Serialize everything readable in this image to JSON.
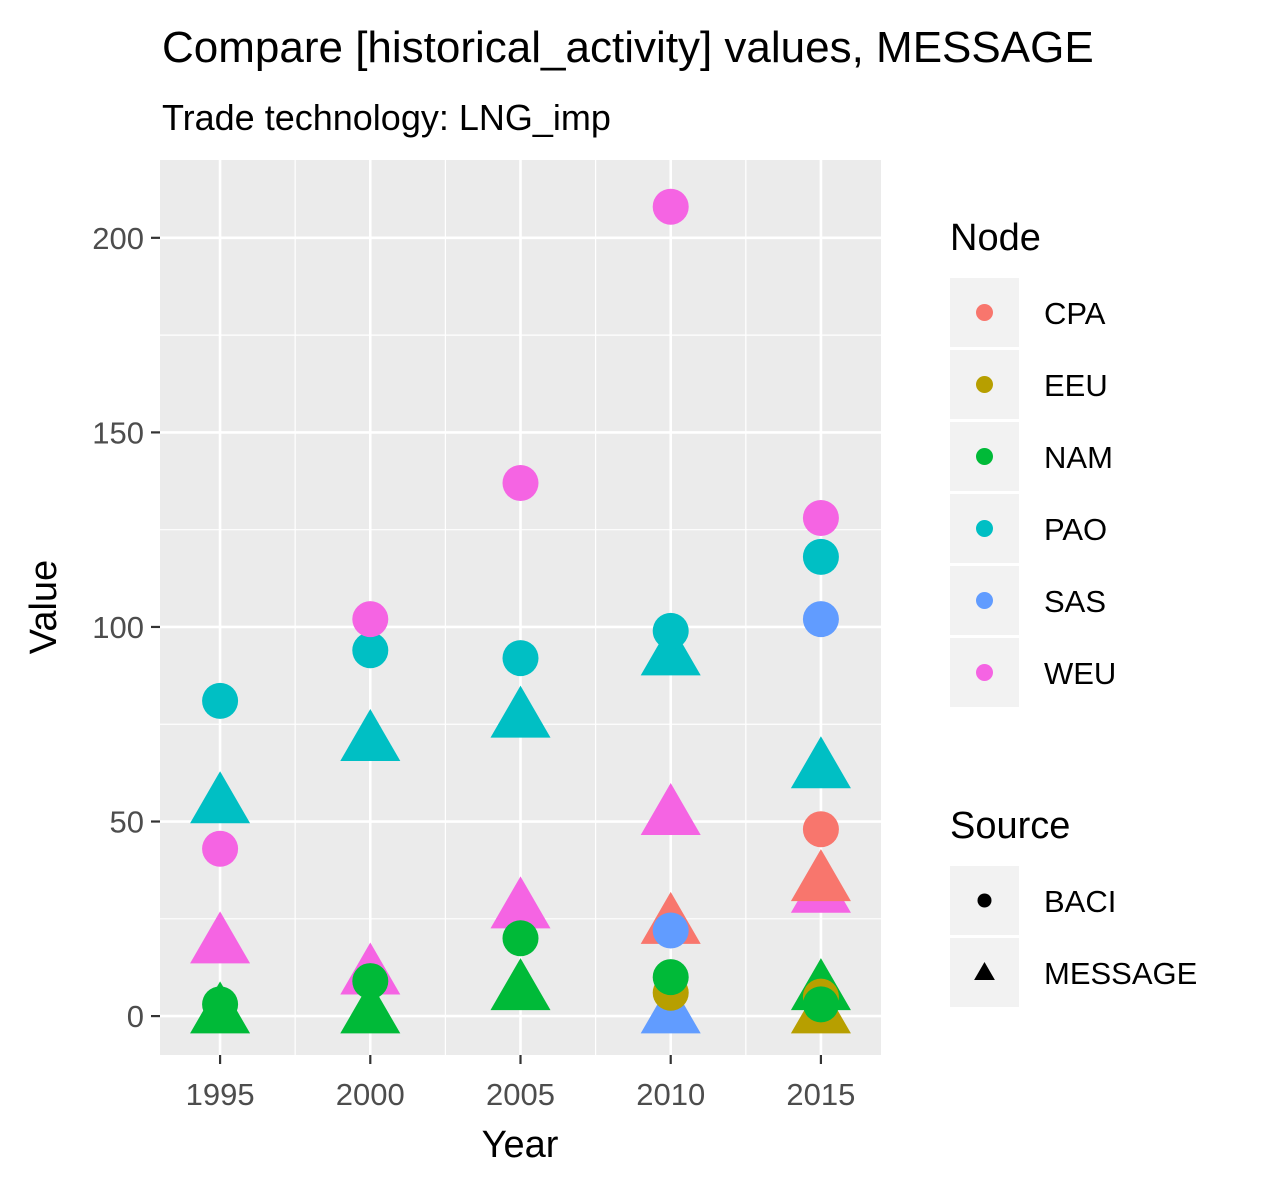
{
  "chart_data": {
    "type": "scatter",
    "title": "Compare [historical_activity] values, MESSAGE",
    "subtitle": "Trade technology: LNG_imp",
    "xlabel": "Year",
    "ylabel": "Value",
    "xlim": [
      1993,
      2017
    ],
    "ylim": [
      -10,
      220
    ],
    "x_ticks": [
      1995,
      2000,
      2005,
      2010,
      2015
    ],
    "x_tick_labels": [
      "1995",
      "2000",
      "2005",
      "2010",
      "2015"
    ],
    "y_ticks": [
      0,
      50,
      100,
      150,
      200
    ],
    "y_tick_labels": [
      "0",
      "50",
      "100",
      "150",
      "200"
    ],
    "grid": true,
    "legend_placement": "right",
    "legend_color_title": "Node",
    "legend_shape_title": "Source",
    "nodes": [
      {
        "name": "CPA",
        "color": "#F8766D"
      },
      {
        "name": "EEU",
        "color": "#B79F00"
      },
      {
        "name": "NAM",
        "color": "#00BA38"
      },
      {
        "name": "PAO",
        "color": "#00BFC4"
      },
      {
        "name": "SAS",
        "color": "#619CFF"
      },
      {
        "name": "WEU",
        "color": "#F564E3"
      }
    ],
    "sources": [
      {
        "name": "BACI",
        "shape": "circle"
      },
      {
        "name": "MESSAGE",
        "shape": "triangle"
      }
    ],
    "points": [
      {
        "year": 1995,
        "value": 0,
        "node": "NAM",
        "source": "MESSAGE"
      },
      {
        "year": 1995,
        "value": 18,
        "node": "WEU",
        "source": "MESSAGE"
      },
      {
        "year": 1995,
        "value": 54,
        "node": "PAO",
        "source": "MESSAGE"
      },
      {
        "year": 1995,
        "value": 3,
        "node": "NAM",
        "source": "BACI"
      },
      {
        "year": 1995,
        "value": 43,
        "node": "WEU",
        "source": "BACI"
      },
      {
        "year": 1995,
        "value": 81,
        "node": "PAO",
        "source": "BACI"
      },
      {
        "year": 2000,
        "value": 10,
        "node": "WEU",
        "source": "MESSAGE"
      },
      {
        "year": 2000,
        "value": 0,
        "node": "NAM",
        "source": "MESSAGE"
      },
      {
        "year": 2000,
        "value": 70,
        "node": "PAO",
        "source": "MESSAGE"
      },
      {
        "year": 2000,
        "value": 9,
        "node": "NAM",
        "source": "BACI"
      },
      {
        "year": 2000,
        "value": 94,
        "node": "PAO",
        "source": "BACI"
      },
      {
        "year": 2000,
        "value": 102,
        "node": "WEU",
        "source": "BACI"
      },
      {
        "year": 2005,
        "value": 27,
        "node": "WEU",
        "source": "MESSAGE"
      },
      {
        "year": 2005,
        "value": 6,
        "node": "NAM",
        "source": "MESSAGE"
      },
      {
        "year": 2005,
        "value": 76,
        "node": "PAO",
        "source": "MESSAGE"
      },
      {
        "year": 2005,
        "value": 20,
        "node": "NAM",
        "source": "BACI"
      },
      {
        "year": 2005,
        "value": 92,
        "node": "PAO",
        "source": "BACI"
      },
      {
        "year": 2005,
        "value": 137,
        "node": "WEU",
        "source": "BACI"
      },
      {
        "year": 2010,
        "value": 23,
        "node": "CPA",
        "source": "MESSAGE"
      },
      {
        "year": 2010,
        "value": 0,
        "node": "SAS",
        "source": "MESSAGE"
      },
      {
        "year": 2010,
        "value": 51,
        "node": "WEU",
        "source": "MESSAGE"
      },
      {
        "year": 2010,
        "value": 92,
        "node": "PAO",
        "source": "MESSAGE"
      },
      {
        "year": 2010,
        "value": 6,
        "node": "EEU",
        "source": "BACI"
      },
      {
        "year": 2010,
        "value": 10,
        "node": "NAM",
        "source": "BACI"
      },
      {
        "year": 2010,
        "value": 22,
        "node": "SAS",
        "source": "BACI"
      },
      {
        "year": 2010,
        "value": 99,
        "node": "PAO",
        "source": "BACI"
      },
      {
        "year": 2010,
        "value": 208,
        "node": "WEU",
        "source": "BACI"
      },
      {
        "year": 2015,
        "value": 0,
        "node": "EEU",
        "source": "MESSAGE"
      },
      {
        "year": 2015,
        "value": 6,
        "node": "NAM",
        "source": "MESSAGE"
      },
      {
        "year": 2015,
        "value": 31,
        "node": "WEU",
        "source": "MESSAGE"
      },
      {
        "year": 2015,
        "value": 34,
        "node": "CPA",
        "source": "MESSAGE"
      },
      {
        "year": 2015,
        "value": 63,
        "node": "PAO",
        "source": "MESSAGE"
      },
      {
        "year": 2015,
        "value": 5,
        "node": "EEU",
        "source": "BACI"
      },
      {
        "year": 2015,
        "value": 3,
        "node": "NAM",
        "source": "BACI"
      },
      {
        "year": 2015,
        "value": 48,
        "node": "CPA",
        "source": "BACI"
      },
      {
        "year": 2015,
        "value": 102,
        "node": "SAS",
        "source": "BACI"
      },
      {
        "year": 2015,
        "value": 118,
        "node": "PAO",
        "source": "BACI"
      },
      {
        "year": 2015,
        "value": 128,
        "node": "WEU",
        "source": "BACI"
      }
    ]
  }
}
